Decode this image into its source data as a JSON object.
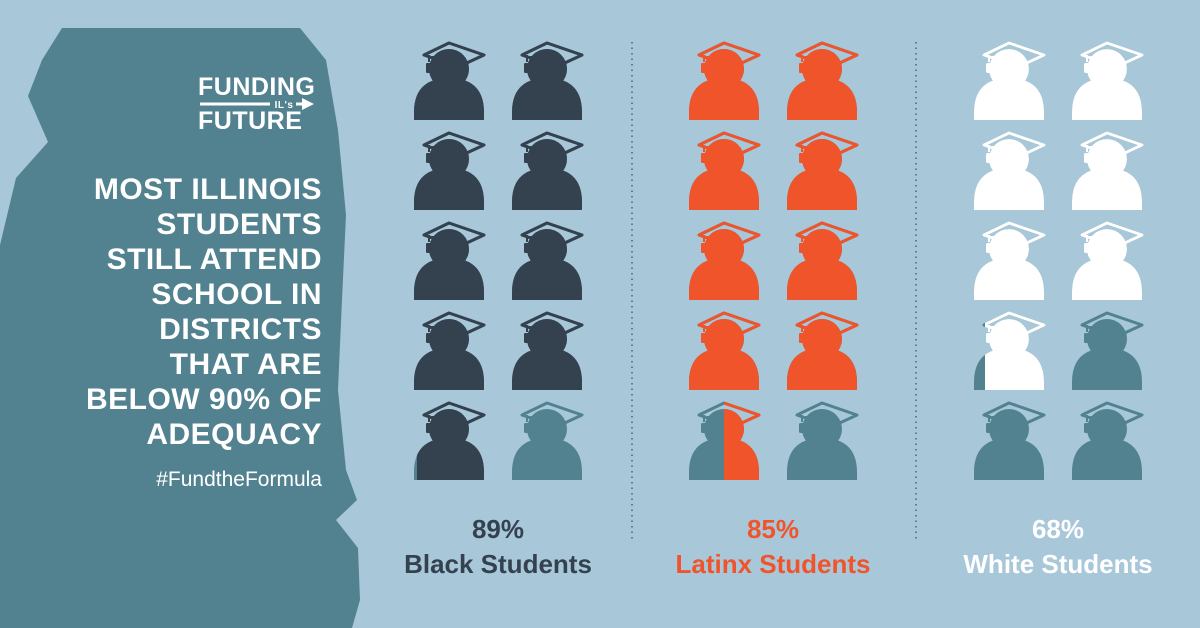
{
  "logo": {
    "line1": "FUNDING",
    "small": "IL's",
    "line2": "FUTURE"
  },
  "headline_lines": [
    "MOST ILLINOIS",
    "STUDENTS",
    "STILL ATTEND",
    "SCHOOL IN",
    "DISTRICTS",
    "THAT ARE",
    "BELOW 90% OF",
    "ADEQUACY"
  ],
  "hashtag": "#FundtheFormula",
  "colors": {
    "background": "#a8c8da",
    "map": "#52828f",
    "empty_icon": "#52828f",
    "divider": "#4a5a6a"
  },
  "chart_data": {
    "type": "pictogram",
    "icons_per_group": 10,
    "series": [
      {
        "name": "Black Students",
        "percent_label": "89%",
        "value": 89,
        "color": "#34414f"
      },
      {
        "name": "Latinx Students",
        "percent_label": "85%",
        "value": 85,
        "color": "#f0542b"
      },
      {
        "name": "White Students",
        "percent_label": "68%",
        "value": 68,
        "color": "#ffffff"
      }
    ]
  }
}
